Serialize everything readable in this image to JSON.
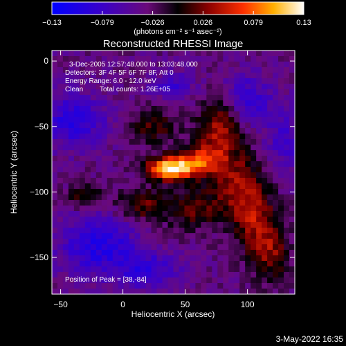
{
  "chart_data": {
    "type": "heatmap",
    "title": "Reconstructed RHESSI Image",
    "xlabel": "Heliocentric X (arcsec)",
    "ylabel": "Heliocentric Y (arcsec)",
    "xlim": [
      -57,
      138
    ],
    "ylim": [
      -178,
      8
    ],
    "xticks": [
      -50,
      0,
      50,
      100
    ],
    "yticks": [
      0,
      -50,
      -100,
      -150
    ],
    "colorbar": {
      "range": [
        -0.13,
        0.13
      ],
      "ticks": [
        "-0.13",
        "-0.079",
        "-0.026",
        "0.026",
        "0.079",
        "0.13"
      ],
      "unit_label": "(photons cm⁻² s⁻¹ asec⁻²)"
    },
    "annotations": {
      "time_range": "3-Dec-2005 12:57:48.000 to 13:03:48.000",
      "detectors": "Detectors: 3F 4F 5F 6F 7F 8F, Att 0",
      "energy_range": "Energy Range: 6.0 - 12.0 keV",
      "algorithm": "Clean",
      "total_counts": "Total counts: 1.26E+05",
      "peak_position": "Position of Peak = [38,-84]"
    },
    "peak": {
      "x": 38,
      "y": -84
    },
    "sources": [
      {
        "x": 38,
        "y": -82,
        "sx": 13,
        "sy": 6,
        "amp": 0.16
      },
      {
        "x": 62,
        "y": -76,
        "sx": 12,
        "sy": 8,
        "amp": 0.085
      },
      {
        "x": 78,
        "y": -52,
        "sx": 12,
        "sy": 16,
        "amp": 0.075
      },
      {
        "x": 92,
        "y": -95,
        "sx": 14,
        "sy": 18,
        "amp": 0.07
      },
      {
        "x": 108,
        "y": -125,
        "sx": 12,
        "sy": 18,
        "amp": 0.065
      },
      {
        "x": 15,
        "y": -110,
        "sx": 14,
        "sy": 9,
        "amp": 0.055
      },
      {
        "x": -30,
        "y": -103,
        "sx": 9,
        "sy": 8,
        "amp": 0.05
      },
      {
        "x": 25,
        "y": -50,
        "sx": 14,
        "sy": 10,
        "amp": 0.045
      },
      {
        "x": 55,
        "y": -112,
        "sx": 16,
        "sy": 12,
        "amp": 0.05
      },
      {
        "x": 120,
        "y": -150,
        "sx": 10,
        "sy": 14,
        "amp": 0.05
      }
    ],
    "neg_sources": [
      {
        "x": -40,
        "y": -45,
        "sx": 18,
        "sy": 14,
        "amp": 0.06
      },
      {
        "x": -20,
        "y": -140,
        "sx": 22,
        "sy": 16,
        "amp": 0.065
      },
      {
        "x": 20,
        "y": -160,
        "sx": 18,
        "sy": 10,
        "amp": 0.05
      },
      {
        "x": 100,
        "y": -30,
        "sx": 14,
        "sy": 14,
        "amp": 0.05
      },
      {
        "x": 40,
        "y": -20,
        "sx": 12,
        "sy": 8,
        "amp": 0.04
      },
      {
        "x": 130,
        "y": -60,
        "sx": 10,
        "sy": 18,
        "amp": 0.04
      }
    ]
  },
  "footer": {
    "date": "3-May-2022 16:35"
  }
}
